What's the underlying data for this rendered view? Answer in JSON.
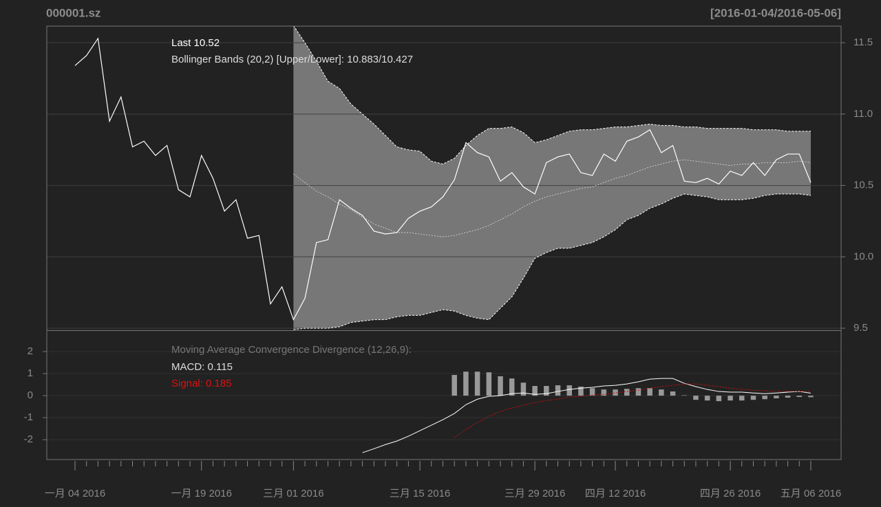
{
  "chart_data": [
    {
      "type": "bollinger",
      "title": "000001.sz",
      "subtitle": "[2016-01-04/2016-05-06]",
      "annotations": [
        "Last 10.52",
        "Bollinger Bands (20,2) [Upper/Lower]: 10.883/10.427"
      ],
      "categories": [
        "一月 04 2016",
        null,
        null,
        null,
        null,
        null,
        null,
        null,
        null,
        null,
        null,
        "一月 19 2016",
        null,
        null,
        null,
        null,
        null,
        null,
        null,
        "三月 01 2016",
        null,
        null,
        null,
        null,
        null,
        null,
        null,
        null,
        null,
        null,
        "三月 15 2016",
        null,
        null,
        null,
        null,
        null,
        null,
        null,
        null,
        null,
        "三月 29 2016",
        null,
        null,
        null,
        null,
        null,
        null,
        "四月 12 2016",
        null,
        null,
        null,
        null,
        null,
        null,
        null,
        null,
        null,
        "四月 26 2016",
        null,
        null,
        null,
        null,
        null,
        null,
        "五月 06 2016"
      ],
      "values": [
        11.34,
        11.41,
        11.53,
        10.95,
        11.12,
        10.77,
        10.81,
        10.71,
        10.78,
        10.47,
        10.42,
        10.71,
        10.55,
        10.32,
        10.4,
        10.13,
        10.15,
        9.67,
        9.79,
        9.56,
        9.71,
        10.1,
        10.12,
        10.4,
        10.34,
        10.29,
        10.18,
        10.16,
        10.17,
        10.27,
        10.32,
        10.35,
        10.42,
        10.54,
        10.8,
        10.73,
        10.7,
        10.53,
        10.59,
        10.49,
        10.44,
        10.66,
        10.7,
        10.72,
        10.59,
        10.57,
        10.72,
        10.67,
        10.81,
        10.84,
        10.89,
        10.73,
        10.78,
        10.53,
        10.52,
        10.55,
        10.51,
        10.6,
        10.57,
        10.66,
        10.57,
        10.68,
        10.72,
        10.72,
        10.52
      ],
      "color": "#ffffff",
      "upper": [
        null,
        null,
        null,
        null,
        null,
        null,
        null,
        null,
        null,
        null,
        null,
        null,
        null,
        null,
        null,
        null,
        null,
        null,
        null,
        11.62,
        11.5,
        11.37,
        11.23,
        11.18,
        11.07,
        11.0,
        10.93,
        10.85,
        10.77,
        10.75,
        10.74,
        10.67,
        10.65,
        10.69,
        10.78,
        10.85,
        10.9,
        10.9,
        10.91,
        10.87,
        10.8,
        10.82,
        10.85,
        10.88,
        10.89,
        10.89,
        10.9,
        10.91,
        10.91,
        10.92,
        10.93,
        10.92,
        10.92,
        10.91,
        10.91,
        10.9,
        10.9,
        10.9,
        10.9,
        10.89,
        10.89,
        10.89,
        10.88,
        10.88,
        10.88
      ],
      "middle": [
        null,
        null,
        null,
        null,
        null,
        null,
        null,
        null,
        null,
        null,
        null,
        null,
        null,
        null,
        null,
        null,
        null,
        null,
        null,
        10.58,
        10.52,
        10.46,
        10.42,
        10.37,
        10.33,
        10.28,
        10.23,
        10.2,
        10.17,
        10.17,
        10.16,
        10.15,
        10.14,
        10.15,
        10.17,
        10.19,
        10.22,
        10.26,
        10.3,
        10.35,
        10.39,
        10.42,
        10.44,
        10.46,
        10.48,
        10.49,
        10.52,
        10.55,
        10.57,
        10.6,
        10.63,
        10.65,
        10.67,
        10.68,
        10.67,
        10.66,
        10.65,
        10.64,
        10.65,
        10.65,
        10.66,
        10.66,
        10.66,
        10.67,
        10.66
      ],
      "lower": [
        null,
        null,
        null,
        null,
        null,
        null,
        null,
        null,
        null,
        null,
        null,
        null,
        null,
        null,
        null,
        null,
        null,
        null,
        null,
        9.49,
        9.5,
        9.5,
        9.5,
        9.51,
        9.54,
        9.55,
        9.56,
        9.56,
        9.58,
        9.59,
        9.59,
        9.61,
        9.63,
        9.62,
        9.59,
        9.57,
        9.56,
        9.64,
        9.72,
        9.85,
        9.99,
        10.03,
        10.06,
        10.06,
        10.08,
        10.1,
        10.14,
        10.19,
        10.26,
        10.29,
        10.34,
        10.37,
        10.41,
        10.44,
        10.43,
        10.42,
        10.4,
        10.4,
        10.4,
        10.41,
        10.43,
        10.44,
        10.44,
        10.44,
        10.43
      ],
      "band_color": "#777777",
      "ylim": [
        9.486,
        11.616
      ],
      "yticks": [
        9.5,
        {
          "value": 10,
          "label": "10.0"
        },
        10.5,
        {
          "value": 11,
          "label": "11.0"
        },
        11.5
      ],
      "grid": true
    },
    {
      "type": "macd",
      "annotations": [
        "Moving Average Convergence Divergence (12,26,9):",
        "MACD: 0.115",
        "Signal: 0.185"
      ],
      "series": [
        {
          "color": "#ffffff",
          "values": [
            null,
            null,
            null,
            null,
            null,
            null,
            null,
            null,
            null,
            null,
            null,
            null,
            null,
            null,
            null,
            null,
            null,
            null,
            null,
            null,
            null,
            null,
            null,
            null,
            null,
            -2.59,
            -2.41,
            -2.22,
            -2.06,
            -1.84,
            -1.59,
            -1.34,
            -1.09,
            -0.81,
            -0.41,
            -0.16,
            -0.03,
            0,
            0.09,
            0.12,
            0.06,
            0.09,
            0.19,
            0.28,
            0.34,
            0.38,
            0.44,
            0.47,
            0.53,
            0.63,
            0.75,
            0.78,
            0.78,
            0.56,
            0.41,
            0.28,
            0.19,
            0.16,
            0.16,
            0.12,
            0.09,
            0.12,
            0.16,
            0.19,
            0.115
          ]
        },
        {
          "color": "#cc1111",
          "values": [
            null,
            null,
            null,
            null,
            null,
            null,
            null,
            null,
            null,
            null,
            null,
            null,
            null,
            null,
            null,
            null,
            null,
            null,
            null,
            null,
            null,
            null,
            null,
            null,
            null,
            null,
            null,
            null,
            null,
            null,
            null,
            null,
            null,
            -1.91,
            -1.53,
            -1.22,
            -0.94,
            -0.72,
            -0.56,
            -0.44,
            -0.31,
            -0.22,
            -0.16,
            -0.06,
            -0.03,
            0.03,
            0.06,
            0.12,
            0.19,
            0.25,
            0.34,
            0.41,
            0.47,
            0.53,
            0.53,
            0.47,
            0.41,
            0.34,
            0.28,
            0.25,
            0.22,
            0.19,
            0.19,
            0.19,
            0.185
          ]
        }
      ],
      "histogram": {
        "color": "#999999",
        "values": [
          null,
          null,
          null,
          null,
          null,
          null,
          null,
          null,
          null,
          null,
          null,
          null,
          null,
          null,
          null,
          null,
          null,
          null,
          null,
          null,
          null,
          null,
          null,
          null,
          null,
          null,
          null,
          null,
          null,
          null,
          null,
          null,
          null,
          0.94,
          1.09,
          1.09,
          1.06,
          0.88,
          0.78,
          0.59,
          0.44,
          0.44,
          0.47,
          0.47,
          0.41,
          0.34,
          0.28,
          0.28,
          0.31,
          0.34,
          0.34,
          0.28,
          0.19,
          0.02,
          -0.19,
          -0.22,
          -0.25,
          -0.22,
          -0.22,
          -0.19,
          -0.16,
          -0.12,
          -0.09,
          -0.06,
          -0.07
        ]
      },
      "ylim": [
        -2.9,
        2.94
      ],
      "yticks": [
        -2,
        -1,
        0,
        1,
        2
      ],
      "grid": true
    }
  ]
}
